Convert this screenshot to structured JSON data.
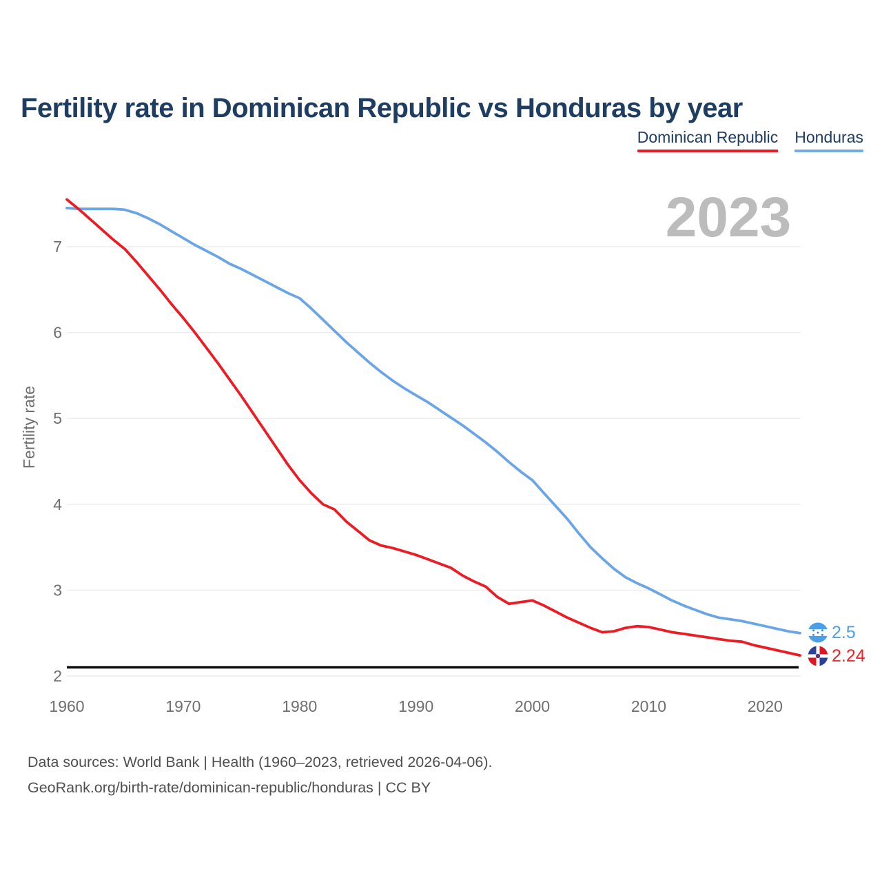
{
  "title": "Fertility rate in Dominican Republic vs Honduras by year",
  "watermark": "2023",
  "legend": [
    {
      "label": "Dominican Republic",
      "color": "#ec1c24"
    },
    {
      "label": "Honduras",
      "color": "#74abe6"
    }
  ],
  "y_axis": {
    "label": "Fertility rate",
    "ticks": [
      7,
      6,
      5,
      4,
      3,
      2
    ]
  },
  "x_axis": {
    "ticks": [
      1960,
      1970,
      1980,
      1990,
      2000,
      2010,
      2020
    ]
  },
  "end_labels": {
    "honduras": {
      "value": "2.5",
      "color": "#4da0ea",
      "flag": "honduras-flag"
    },
    "dominican_republic": {
      "value": "2.24",
      "color": "#ed2127",
      "flag": "dominican-republic-flag"
    }
  },
  "footer": {
    "line1": "Data sources: World Bank | Health (1960–2023, retrieved 2026-04-06).",
    "line2": "GeoRank.org/birth-rate/dominican-republic/honduras | CC BY"
  },
  "chart_data": {
    "type": "line",
    "title": "Fertility rate in Dominican Republic vs Honduras by year",
    "xlabel": "",
    "ylabel": "Fertility rate",
    "x_start": 1960,
    "x_end": 2023,
    "x_step": 1,
    "x_ticks": [
      1960,
      1970,
      1980,
      1990,
      2000,
      2010,
      2020
    ],
    "y_ticks": [
      7,
      6,
      5,
      4,
      3,
      2
    ],
    "ylim": [
      2,
      7.6
    ],
    "grid": true,
    "legend_position": "top-right",
    "reference_line": {
      "value": 2.1,
      "color": "#0b0b0b",
      "name": "replacement-level"
    },
    "series": [
      {
        "name": "Dominican Republic",
        "color": "#ec1c24",
        "end_label": "2.24",
        "values": [
          7.55,
          7.44,
          7.32,
          7.2,
          7.08,
          6.97,
          6.82,
          6.66,
          6.5,
          6.33,
          6.17,
          6.0,
          5.82,
          5.64,
          5.45,
          5.26,
          5.06,
          4.86,
          4.66,
          4.46,
          4.28,
          4.13,
          4.0,
          3.94,
          3.8,
          3.69,
          3.58,
          3.52,
          3.49,
          3.45,
          3.41,
          3.36,
          3.31,
          3.26,
          3.17,
          3.1,
          3.04,
          2.92,
          2.84,
          2.86,
          2.88,
          2.82,
          2.75,
          2.68,
          2.62,
          2.56,
          2.51,
          2.52,
          2.56,
          2.58,
          2.57,
          2.54,
          2.51,
          2.49,
          2.47,
          2.45,
          2.43,
          2.41,
          2.4,
          2.36,
          2.33,
          2.3,
          2.27,
          2.24
        ]
      },
      {
        "name": "Honduras",
        "color": "#6aa5e6",
        "end_label": "2.5",
        "values": [
          7.45,
          7.44,
          7.44,
          7.44,
          7.44,
          7.43,
          7.39,
          7.33,
          7.26,
          7.18,
          7.1,
          7.02,
          6.95,
          6.88,
          6.8,
          6.74,
          6.67,
          6.6,
          6.53,
          6.46,
          6.4,
          6.28,
          6.15,
          6.02,
          5.89,
          5.77,
          5.65,
          5.54,
          5.44,
          5.35,
          5.27,
          5.19,
          5.1,
          5.01,
          4.92,
          4.82,
          4.72,
          4.61,
          4.49,
          4.38,
          4.28,
          4.13,
          3.98,
          3.83,
          3.66,
          3.5,
          3.37,
          3.25,
          3.15,
          3.08,
          3.02,
          2.95,
          2.88,
          2.82,
          2.77,
          2.72,
          2.68,
          2.66,
          2.64,
          2.61,
          2.58,
          2.55,
          2.52,
          2.5
        ]
      }
    ]
  }
}
